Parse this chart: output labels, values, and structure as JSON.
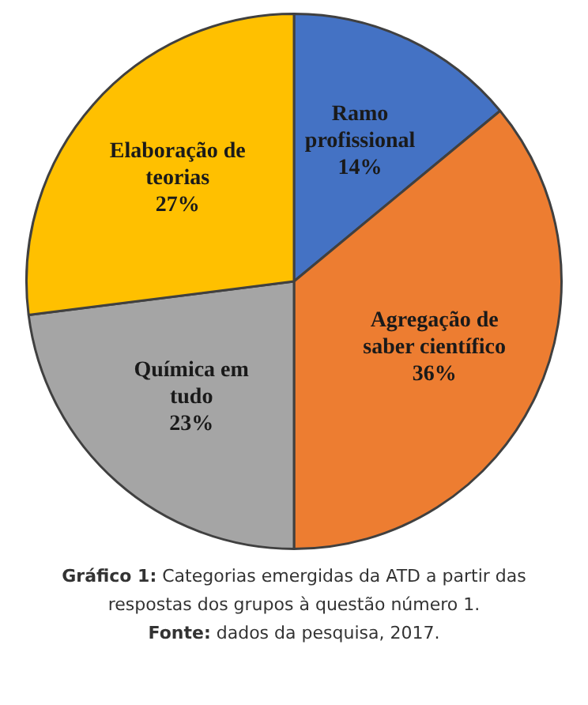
{
  "chart_data": {
    "type": "pie",
    "categories": [
      "Ramo profissional",
      "Agregação de saber científico",
      "Química em tudo",
      "Elaboração de teorias"
    ],
    "values": [
      14,
      36,
      23,
      27
    ],
    "value_labels": [
      "14%",
      "36%",
      "23%",
      "27%"
    ],
    "colors": [
      "#4472c4",
      "#ed7d31",
      "#a5a5a5",
      "#ffc000"
    ],
    "legend": false,
    "annotations": [
      "Gráfico 1: Categorias emergidas da ATD a partir das respostas dos grupos à questão número 1.",
      "Fonte: dados da pesquisa, 2017."
    ]
  }
}
